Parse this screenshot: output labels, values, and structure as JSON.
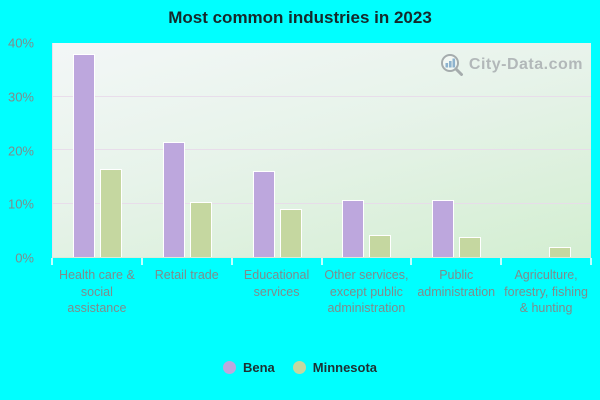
{
  "title": "Most common industries in 2023",
  "watermark": {
    "text": "City-Data.com",
    "icon": "magnifier-bar-chart-icon"
  },
  "colors": {
    "background": "#00ffff",
    "bena": "#bda7dd",
    "minnesota": "#c5d7a0",
    "plot_gradient_top": "#f3f7f7",
    "plot_gradient_bottom": "#d3eed1"
  },
  "chart_data": {
    "type": "bar",
    "title": "Most common industries in 2023",
    "categories": [
      "Health care & social assistance",
      "Retail trade",
      "Educational services",
      "Other services, except public administration",
      "Public administration",
      "Agriculture, forestry, fishing & hunting"
    ],
    "series": [
      {
        "name": "Bena",
        "color": "#bda7dd",
        "values": [
          38,
          21.5,
          16,
          10.7,
          10.7,
          0
        ]
      },
      {
        "name": "Minnesota",
        "color": "#c5d7a0",
        "values": [
          16.5,
          10.3,
          9,
          4.2,
          3.7,
          1.8
        ]
      }
    ],
    "xlabel": "",
    "ylabel": "",
    "ylim": [
      0,
      40
    ],
    "yticks": [
      "0%",
      "10%",
      "20%",
      "30%",
      "40%"
    ],
    "grid": true,
    "gridline_values": [
      10,
      20,
      30
    ],
    "legend_position": "bottom"
  }
}
